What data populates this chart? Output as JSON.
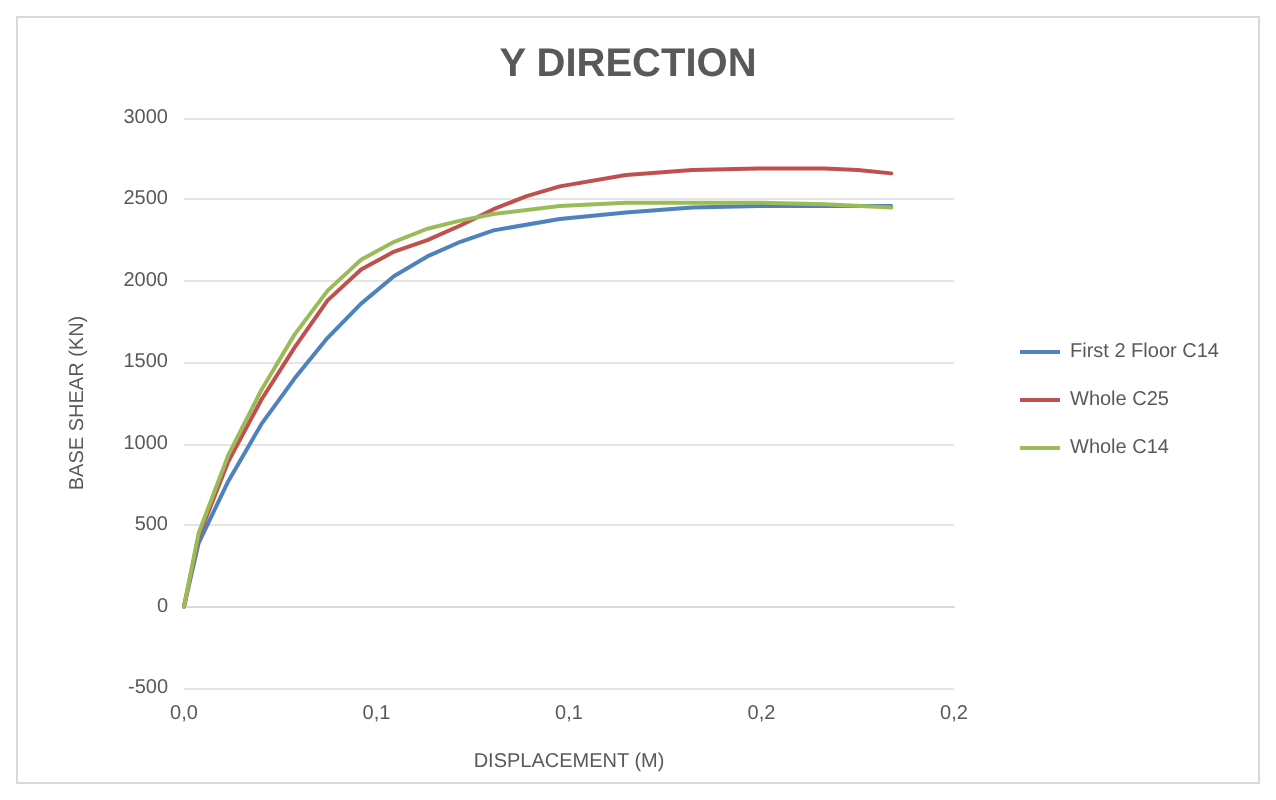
{
  "chart_data": {
    "type": "line",
    "title": "Y DIRECTION",
    "xlabel": "DISPLACEMENT (M)",
    "ylabel": "BASE SHEAR (KN)",
    "xlim": [
      0,
      0.2
    ],
    "xticks": [
      {
        "value": 0,
        "label": "0,0"
      },
      {
        "value": 0.05,
        "label": "0,1"
      },
      {
        "value": 0.1,
        "label": "0,1"
      },
      {
        "value": 0.15,
        "label": "0,2"
      },
      {
        "value": 0.2,
        "label": "0,2"
      }
    ],
    "ylim": [
      -500,
      3000
    ],
    "yticks": [
      -500,
      0,
      500,
      1000,
      1500,
      2000,
      2500,
      3000
    ],
    "grid": "y",
    "legend": "right",
    "marker": "none",
    "line_style": "solid",
    "series": [
      {
        "name": "First 2 Floor C14",
        "color": "#4f81bd",
        "x": [
          0,
          0.0038,
          0.0115,
          0.0201,
          0.0287,
          0.0373,
          0.046,
          0.0546,
          0.0632,
          0.0718,
          0.0804,
          0.0976,
          0.1148,
          0.132,
          0.1492,
          0.1664,
          0.1837
        ],
        "values": [
          0,
          390,
          770,
          1120,
          1400,
          1650,
          1860,
          2030,
          2150,
          2240,
          2310,
          2380,
          2420,
          2450,
          2460,
          2460,
          2460
        ]
      },
      {
        "name": "Whole C25",
        "color": "#c0504d",
        "x": [
          0,
          0.0038,
          0.0115,
          0.0201,
          0.0287,
          0.0373,
          0.046,
          0.0546,
          0.0632,
          0.0718,
          0.0804,
          0.089,
          0.0976,
          0.1148,
          0.132,
          0.1492,
          0.1664,
          0.175,
          0.1837
        ],
        "values": [
          0,
          430,
          890,
          1270,
          1590,
          1880,
          2070,
          2180,
          2250,
          2340,
          2440,
          2520,
          2580,
          2650,
          2680,
          2690,
          2690,
          2680,
          2660
        ]
      },
      {
        "name": "Whole C14",
        "color": "#9bbb59",
        "x": [
          0,
          0.0038,
          0.0115,
          0.0201,
          0.0287,
          0.0373,
          0.046,
          0.0546,
          0.0632,
          0.0718,
          0.0804,
          0.0976,
          0.1148,
          0.132,
          0.1492,
          0.1664,
          0.1837
        ],
        "values": [
          0,
          450,
          930,
          1330,
          1670,
          1940,
          2130,
          2240,
          2320,
          2370,
          2410,
          2460,
          2480,
          2480,
          2480,
          2470,
          2450
        ]
      }
    ]
  }
}
